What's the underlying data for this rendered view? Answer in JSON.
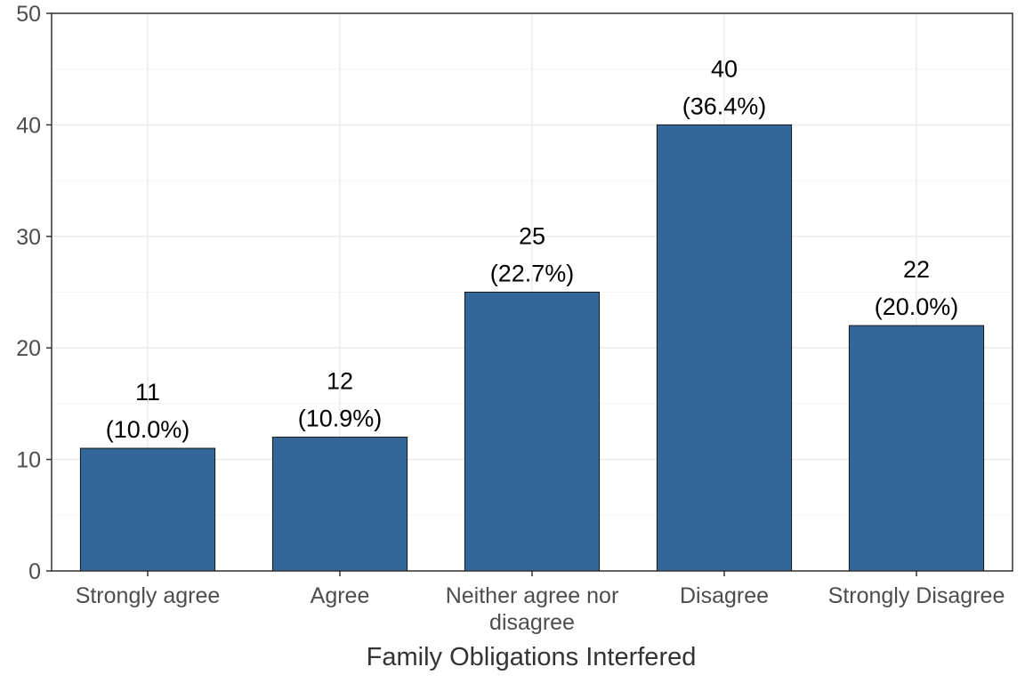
{
  "chart_data": {
    "type": "bar",
    "categories": [
      "Strongly agree",
      "Agree",
      "Neither agree nor disagree",
      "Disagree",
      "Strongly Disagree"
    ],
    "category_label_lines": [
      [
        "Strongly agree"
      ],
      [
        "Agree"
      ],
      [
        "Neither agree nor",
        "disagree"
      ],
      [
        "Disagree"
      ],
      [
        "Strongly Disagree"
      ]
    ],
    "values": [
      11,
      12,
      25,
      40,
      22
    ],
    "percent_labels": [
      "(10.0%)",
      "(10.9%)",
      "(22.7%)",
      "(36.4%)",
      "(20.0%)"
    ],
    "count_labels": [
      "11",
      "12",
      "25",
      "40",
      "22"
    ],
    "title": "",
    "xlabel": "Family Obligations Interfered",
    "ylabel": "",
    "ylim": [
      0,
      50
    ],
    "yticks": [
      0,
      10,
      20,
      30,
      40,
      50
    ],
    "grid": true,
    "legend": "none",
    "colors": {
      "bar_fill": "#336699",
      "bar_stroke": "#1a1a1a",
      "grid_major": "#ebebeb",
      "grid_minor": "#f5f5f5",
      "panel_border": "#333333"
    }
  }
}
